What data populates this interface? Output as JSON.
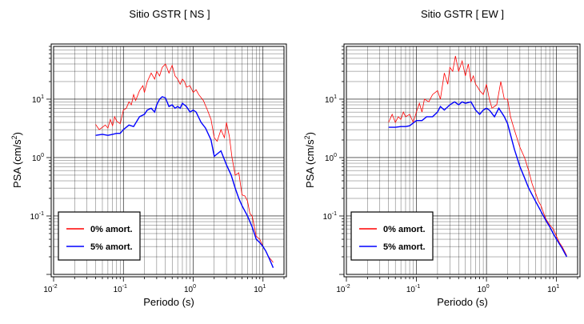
{
  "chart_data": [
    {
      "type": "line",
      "title": "Sitio GSTR [ NS ]",
      "xlabel": "Periodo (s)",
      "ylabel": "PSA (cm/s²)",
      "ylabel_main": "PSA (cm/s",
      "ylabel_sup": "2",
      "ylabel_close": ")",
      "xscale": "log",
      "yscale": "log",
      "xlim": [
        0.01,
        20
      ],
      "ylim": [
        0.01,
        80
      ],
      "grid": true,
      "legend_position": "bottom-left",
      "x_ticks": [
        {
          "base": "10",
          "exp": "-2"
        },
        {
          "base": "10",
          "exp": "-1"
        },
        {
          "base": "10",
          "exp": "0"
        },
        {
          "base": "10",
          "exp": "1"
        }
      ],
      "y_ticks": [
        {
          "base": "10",
          "exp": "-1"
        },
        {
          "base": "10",
          "exp": "0"
        },
        {
          "base": "10",
          "exp": "1"
        }
      ],
      "series": [
        {
          "name": "0% amort.",
          "color": "#ff0000",
          "x": [
            0.04,
            0.045,
            0.05,
            0.055,
            0.06,
            0.065,
            0.07,
            0.075,
            0.08,
            0.09,
            0.1,
            0.11,
            0.12,
            0.13,
            0.14,
            0.15,
            0.17,
            0.19,
            0.2,
            0.22,
            0.25,
            0.28,
            0.3,
            0.33,
            0.36,
            0.4,
            0.45,
            0.5,
            0.55,
            0.6,
            0.65,
            0.7,
            0.75,
            0.8,
            0.9,
            1.0,
            1.1,
            1.2,
            1.4,
            1.6,
            1.8,
            2.0,
            2.2,
            2.5,
            2.8,
            3.0,
            3.3,
            3.6,
            4.0,
            4.5,
            5.0,
            5.5,
            6.0,
            6.5,
            7.0,
            8.0,
            9.0,
            10.0,
            11.0,
            12.0,
            13.0,
            14.0
          ],
          "y": [
            3.7,
            3.0,
            3.3,
            3.6,
            3.2,
            4.5,
            3.5,
            5.0,
            4.2,
            3.8,
            6.5,
            7.0,
            9.0,
            8.0,
            12.0,
            9.5,
            14.0,
            17.0,
            13.0,
            20.0,
            28.0,
            22.0,
            30.0,
            25.0,
            35.0,
            40.0,
            28.0,
            38.0,
            25.0,
            22.0,
            18.0,
            22.0,
            20.0,
            16.0,
            17.0,
            13.0,
            14.5,
            12.0,
            9.5,
            6.5,
            4.5,
            2.2,
            1.9,
            3.0,
            2.2,
            4.0,
            2.3,
            1.0,
            0.5,
            0.55,
            0.23,
            0.22,
            0.18,
            0.11,
            0.1,
            0.045,
            0.04,
            0.03,
            0.025,
            0.02,
            0.018,
            0.016
          ]
        },
        {
          "name": "5% amort.",
          "color": "#0000ff",
          "x": [
            0.04,
            0.05,
            0.06,
            0.07,
            0.08,
            0.09,
            0.1,
            0.12,
            0.14,
            0.17,
            0.2,
            0.22,
            0.25,
            0.28,
            0.3,
            0.33,
            0.36,
            0.4,
            0.45,
            0.5,
            0.55,
            0.6,
            0.65,
            0.7,
            0.8,
            0.9,
            1.0,
            1.1,
            1.3,
            1.5,
            1.8,
            2.0,
            2.5,
            3.0,
            3.5,
            4.0,
            4.5,
            5.0,
            6.0,
            7.0,
            8.0,
            9.0,
            10.0,
            11.0,
            12.0,
            13.0,
            14.0
          ],
          "y": [
            2.4,
            2.5,
            2.4,
            2.5,
            2.6,
            2.6,
            3.0,
            3.6,
            3.4,
            5.0,
            5.5,
            6.5,
            7.0,
            6.0,
            8.0,
            10.0,
            11.0,
            10.5,
            7.5,
            8.0,
            7.0,
            7.5,
            7.0,
            8.5,
            7.5,
            6.0,
            6.5,
            6.0,
            4.0,
            3.2,
            2.0,
            1.05,
            1.3,
            0.75,
            0.5,
            0.3,
            0.2,
            0.15,
            0.1,
            0.065,
            0.04,
            0.035,
            0.03,
            0.025,
            0.02,
            0.016,
            0.013
          ]
        }
      ]
    },
    {
      "type": "line",
      "title": "Sitio GSTR [ EW ]",
      "xlabel": "Periodo (s)",
      "ylabel": "PSA (cm/s²)",
      "ylabel_main": "PSA (cm/s",
      "ylabel_sup": "2",
      "ylabel_close": ")",
      "xscale": "log",
      "yscale": "log",
      "xlim": [
        0.01,
        20
      ],
      "ylim": [
        0.01,
        80
      ],
      "grid": true,
      "legend_position": "bottom-left",
      "x_ticks": [
        {
          "base": "10",
          "exp": "-2"
        },
        {
          "base": "10",
          "exp": "-1"
        },
        {
          "base": "10",
          "exp": "0"
        },
        {
          "base": "10",
          "exp": "1"
        }
      ],
      "y_ticks": [
        {
          "base": "10",
          "exp": "-1"
        },
        {
          "base": "10",
          "exp": "0"
        },
        {
          "base": "10",
          "exp": "1"
        }
      ],
      "series": [
        {
          "name": "0% amort.",
          "color": "#ff0000",
          "x": [
            0.04,
            0.045,
            0.05,
            0.055,
            0.06,
            0.065,
            0.07,
            0.08,
            0.09,
            0.1,
            0.11,
            0.12,
            0.13,
            0.15,
            0.17,
            0.2,
            0.22,
            0.25,
            0.28,
            0.3,
            0.33,
            0.36,
            0.4,
            0.45,
            0.5,
            0.55,
            0.6,
            0.65,
            0.7,
            0.75,
            0.8,
            0.9,
            1.0,
            1.1,
            1.2,
            1.4,
            1.6,
            1.8,
            2.0,
            2.2,
            2.5,
            3.0,
            3.5,
            4.0,
            4.5,
            5.0,
            5.5,
            6.0,
            7.0,
            8.0,
            9.0,
            10.0,
            11.0,
            12.0,
            13.0,
            14.0
          ],
          "y": [
            4.0,
            5.5,
            4.0,
            5.0,
            4.5,
            6.0,
            5.0,
            5.5,
            4.0,
            6.0,
            8.5,
            6.0,
            10.0,
            9.0,
            12.0,
            14.0,
            10.0,
            28.0,
            18.0,
            35.0,
            30.0,
            55.0,
            30.0,
            45.0,
            25.0,
            40.0,
            20.0,
            25.0,
            18.0,
            16.0,
            14.0,
            12.0,
            18.0,
            10.0,
            7.0,
            8.0,
            20.0,
            10.0,
            10.0,
            5.0,
            3.0,
            1.5,
            1.0,
            0.6,
            0.35,
            0.25,
            0.18,
            0.15,
            0.09,
            0.07,
            0.06,
            0.045,
            0.035,
            0.03,
            0.025,
            0.021
          ]
        },
        {
          "name": "5% amort.",
          "color": "#0000ff",
          "x": [
            0.04,
            0.05,
            0.06,
            0.07,
            0.08,
            0.1,
            0.12,
            0.14,
            0.17,
            0.2,
            0.22,
            0.25,
            0.3,
            0.35,
            0.4,
            0.45,
            0.5,
            0.6,
            0.7,
            0.8,
            0.9,
            1.0,
            1.1,
            1.3,
            1.5,
            1.8,
            2.0,
            2.5,
            3.0,
            3.5,
            4.0,
            5.0,
            6.0,
            7.0,
            8.0,
            9.0,
            10.0,
            12.0,
            14.0
          ],
          "y": [
            3.3,
            3.3,
            3.4,
            3.4,
            3.5,
            4.3,
            4.3,
            5.0,
            5.0,
            6.0,
            7.5,
            6.5,
            8.0,
            9.0,
            8.0,
            9.0,
            8.5,
            9.0,
            6.5,
            5.5,
            6.5,
            7.0,
            6.5,
            5.0,
            7.0,
            5.0,
            3.8,
            1.4,
            0.7,
            0.45,
            0.3,
            0.18,
            0.12,
            0.085,
            0.065,
            0.05,
            0.04,
            0.028,
            0.02
          ]
        }
      ]
    }
  ]
}
